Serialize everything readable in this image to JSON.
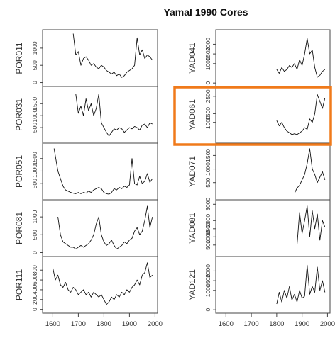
{
  "chart_data": {
    "type": "line",
    "title": "Yamal 1990 Cores",
    "xlim": [
      1560,
      2010
    ],
    "x_ticks": [
      1600,
      1700,
      1800,
      1900,
      2000
    ],
    "highlighted_series": "YAD061",
    "highlight_color": "#f07a1a",
    "panels": [
      {
        "name": "POR011",
        "column": "left",
        "yticks": [
          0,
          500,
          1000
        ],
        "ylim": [
          -30,
          1450
        ],
        "x": [
          1680,
          1690,
          1700,
          1710,
          1720,
          1730,
          1740,
          1750,
          1760,
          1770,
          1780,
          1790,
          1800,
          1810,
          1820,
          1830,
          1840,
          1850,
          1860,
          1870,
          1880,
          1890,
          1900,
          1910,
          1920,
          1930,
          1940,
          1950,
          1960,
          1970,
          1980,
          1990
        ],
        "y": [
          1420,
          800,
          900,
          500,
          700,
          750,
          650,
          500,
          550,
          450,
          400,
          500,
          450,
          350,
          300,
          250,
          300,
          200,
          250,
          150,
          200,
          300,
          350,
          400,
          500,
          1300,
          800,
          950,
          700,
          800,
          750,
          650
        ]
      },
      {
        "name": "POR031",
        "column": "left",
        "yticks": [
          500,
          1000,
          1500
        ],
        "ylim": [
          -30,
          2100
        ],
        "x": [
          1690,
          1700,
          1710,
          1720,
          1730,
          1740,
          1750,
          1760,
          1770,
          1780,
          1790,
          1800,
          1810,
          1820,
          1830,
          1840,
          1850,
          1860,
          1870,
          1880,
          1890,
          1900,
          1910,
          1920,
          1930,
          1940,
          1950,
          1960,
          1970,
          1980,
          1990
        ],
        "y": [
          1900,
          1100,
          1400,
          1000,
          1700,
          1200,
          1500,
          1000,
          1300,
          1900,
          700,
          500,
          300,
          150,
          300,
          450,
          400,
          500,
          450,
          300,
          400,
          500,
          450,
          550,
          500,
          400,
          600,
          650,
          500,
          700,
          650
        ]
      },
      {
        "name": "POR051",
        "column": "left",
        "yticks": [
          500,
          1000,
          1500
        ],
        "ylim": [
          -30,
          2000
        ],
        "x": [
          1605,
          1610,
          1620,
          1630,
          1640,
          1650,
          1660,
          1670,
          1680,
          1690,
          1700,
          1710,
          1720,
          1730,
          1740,
          1750,
          1760,
          1770,
          1780,
          1790,
          1800,
          1810,
          1820,
          1830,
          1840,
          1850,
          1860,
          1870,
          1880,
          1890,
          1900,
          1910,
          1920,
          1930,
          1940,
          1950,
          1960,
          1970,
          1980,
          1990
        ],
        "y": [
          1900,
          1600,
          1000,
          700,
          400,
          250,
          200,
          150,
          120,
          100,
          150,
          100,
          150,
          120,
          200,
          150,
          250,
          300,
          350,
          300,
          150,
          100,
          80,
          150,
          300,
          250,
          350,
          300,
          400,
          350,
          450,
          1500,
          500,
          450,
          800,
          500,
          600,
          900,
          550,
          700
        ]
      },
      {
        "name": "POR081",
        "column": "left",
        "yticks": [
          0,
          500,
          1000
        ],
        "ylim": [
          -30,
          1400
        ],
        "x": [
          1620,
          1630,
          1640,
          1650,
          1660,
          1670,
          1680,
          1690,
          1700,
          1710,
          1720,
          1730,
          1740,
          1750,
          1760,
          1770,
          1780,
          1790,
          1800,
          1810,
          1820,
          1830,
          1840,
          1850,
          1860,
          1870,
          1880,
          1890,
          1900,
          1910,
          1920,
          1930,
          1940,
          1950,
          1960,
          1970,
          1980,
          1990
        ],
        "y": [
          1000,
          500,
          300,
          250,
          200,
          150,
          150,
          100,
          150,
          200,
          150,
          200,
          250,
          350,
          500,
          800,
          1000,
          500,
          300,
          200,
          250,
          350,
          200,
          100,
          150,
          200,
          300,
          250,
          350,
          400,
          600,
          700,
          500,
          600,
          900,
          1300,
          700,
          1000
        ]
      },
      {
        "name": "POR111",
        "column": "left",
        "yticks": [
          0,
          200,
          400,
          600,
          800
        ],
        "ylim": [
          -20,
          1020
        ],
        "x": [
          1600,
          1610,
          1620,
          1630,
          1640,
          1650,
          1660,
          1670,
          1680,
          1690,
          1700,
          1710,
          1720,
          1730,
          1740,
          1750,
          1760,
          1770,
          1780,
          1790,
          1800,
          1810,
          1820,
          1830,
          1840,
          1850,
          1860,
          1870,
          1880,
          1890,
          1900,
          1910,
          1920,
          1930,
          1940,
          1950,
          1960,
          1970,
          1980,
          1990
        ],
        "y": [
          850,
          600,
          700,
          500,
          450,
          550,
          400,
          350,
          450,
          400,
          300,
          350,
          400,
          300,
          350,
          250,
          350,
          300,
          250,
          300,
          200,
          100,
          150,
          250,
          200,
          300,
          250,
          350,
          300,
          400,
          350,
          450,
          500,
          600,
          500,
          700,
          750,
          950,
          650,
          700
        ]
      },
      {
        "name": "YAD041",
        "column": "right",
        "yticks": [
          0,
          1000,
          1500,
          2000
        ],
        "ylim": [
          -30,
          2600
        ],
        "x": [
          1800,
          1810,
          1820,
          1830,
          1840,
          1850,
          1860,
          1870,
          1880,
          1890,
          1900,
          1910,
          1920,
          1930,
          1940,
          1950,
          1960,
          1970,
          1980,
          1990
        ],
        "y": [
          700,
          500,
          800,
          600,
          700,
          900,
          800,
          1000,
          700,
          1200,
          900,
          1500,
          2300,
          1500,
          1700,
          800,
          300,
          400,
          600,
          700
        ]
      },
      {
        "name": "YAD061",
        "column": "right",
        "yticks": [
          1000,
          1500,
          2500
        ],
        "ylim": [
          -30,
          2900
        ],
        "x": [
          1800,
          1810,
          1820,
          1830,
          1840,
          1850,
          1860,
          1870,
          1880,
          1890,
          1900,
          1910,
          1920,
          1930,
          1940,
          1950,
          1960,
          1970,
          1980,
          1990
        ],
        "y": [
          1100,
          800,
          1000,
          700,
          500,
          400,
          300,
          350,
          300,
          400,
          500,
          700,
          600,
          1200,
          1000,
          1500,
          2600,
          2200,
          1800,
          2400
        ]
      },
      {
        "name": "YAD071",
        "column": "right",
        "yticks": [
          500,
          1000,
          1500
        ],
        "ylim": [
          -30,
          1850
        ],
        "x": [
          1870,
          1880,
          1890,
          1900,
          1910,
          1920,
          1930,
          1940,
          1950,
          1960,
          1970,
          1980,
          1990
        ],
        "y": [
          100,
          300,
          400,
          600,
          800,
          1200,
          1750,
          1000,
          800,
          500,
          700,
          900,
          600
        ]
      },
      {
        "name": "YAD081",
        "column": "right",
        "yticks": [
          500,
          1000,
          1500,
          2000,
          3000
        ],
        "ylim": [
          -30,
          3100
        ],
        "x": [
          1880,
          1890,
          1900,
          1910,
          1920,
          1930,
          1940,
          1950,
          1960,
          1970,
          1980,
          1990
        ],
        "y": [
          500,
          2500,
          1200,
          2000,
          2900,
          1000,
          2600,
          1500,
          2400,
          800,
          2000,
          1600
        ]
      },
      {
        "name": "YAD121",
        "column": "right",
        "yticks": [
          0,
          1000,
          1500,
          2000
        ],
        "ylim": [
          -30,
          2600
        ],
        "x": [
          1800,
          1810,
          1820,
          1830,
          1840,
          1850,
          1860,
          1870,
          1880,
          1890,
          1900,
          1910,
          1920,
          1930,
          1940,
          1950,
          1960,
          1970,
          1980,
          1990
        ],
        "y": [
          300,
          900,
          400,
          1000,
          600,
          1200,
          500,
          800,
          400,
          1000,
          600,
          700,
          2300,
          800,
          1200,
          900,
          2200,
          1000,
          1500,
          900
        ]
      }
    ]
  }
}
